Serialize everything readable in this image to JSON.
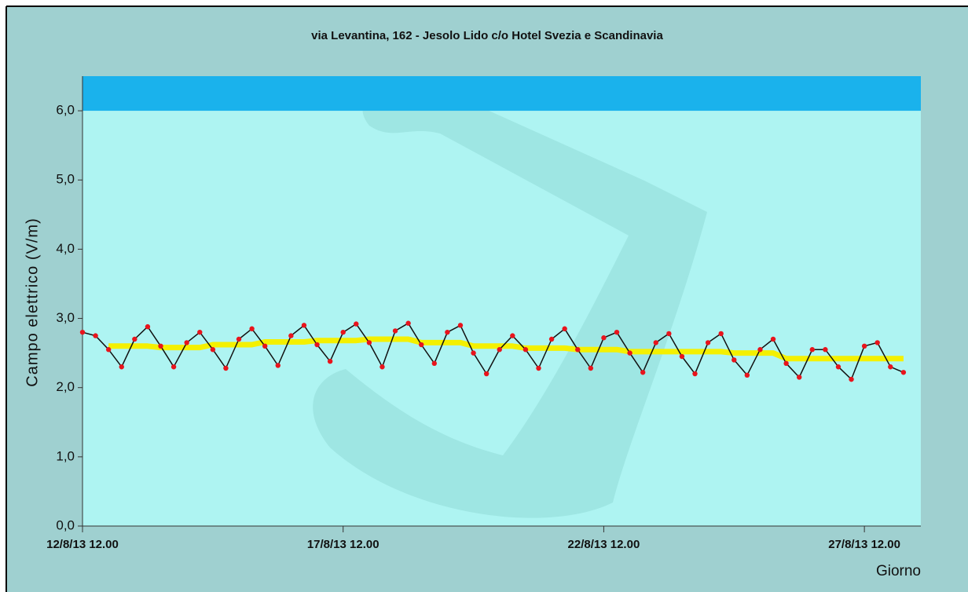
{
  "chart_data": {
    "type": "line",
    "title": "via Levantina, 162  - Jesolo Lido c/o Hotel Svezia e Scandinavia",
    "y_label": "Campo elettrico (V/m)",
    "x_label": "Giorno",
    "x": [
      "12/8/13 12.00",
      "12/8/13 18.00",
      "13/8/13 00.00",
      "13/8/13 06.00",
      "13/8/13 12.00",
      "13/8/13 18.00",
      "14/8/13 00.00",
      "14/8/13 06.00",
      "14/8/13 12.00",
      "14/8/13 18.00",
      "15/8/13 00.00",
      "15/8/13 06.00",
      "15/8/13 12.00",
      "15/8/13 18.00",
      "16/8/13 00.00",
      "16/8/13 06.00",
      "16/8/13 12.00",
      "16/8/13 18.00",
      "17/8/13 00.00",
      "17/8/13 06.00",
      "17/8/13 12.00",
      "17/8/13 18.00",
      "18/8/13 00.00",
      "18/8/13 06.00",
      "18/8/13 12.00",
      "18/8/13 18.00",
      "19/8/13 00.00",
      "19/8/13 06.00",
      "19/8/13 12.00",
      "19/8/13 18.00",
      "20/8/13 00.00",
      "20/8/13 06.00",
      "20/8/13 12.00",
      "20/8/13 18.00",
      "21/8/13 00.00",
      "21/8/13 06.00",
      "21/8/13 12.00",
      "21/8/13 18.00",
      "22/8/13 00.00",
      "22/8/13 06.00",
      "22/8/13 12.00",
      "22/8/13 18.00",
      "23/8/13 00.00",
      "23/8/13 06.00",
      "23/8/13 12.00",
      "23/8/13 18.00",
      "24/8/13 00.00",
      "24/8/13 06.00",
      "24/8/13 12.00",
      "24/8/13 18.00",
      "25/8/13 00.00",
      "25/8/13 06.00",
      "25/8/13 12.00",
      "25/8/13 18.00",
      "26/8/13 00.00",
      "26/8/13 06.00",
      "26/8/13 12.00",
      "26/8/13 18.00",
      "27/8/13 00.00",
      "27/8/13 06.00",
      "27/8/13 12.00",
      "27/8/13 18.00",
      "28/8/13 00.00",
      "28/8/13 06.00"
    ],
    "series": [
      {
        "color": "#e8141c",
        "line_color": "#111111",
        "values": [
          2.8,
          2.75,
          2.55,
          2.3,
          2.7,
          2.88,
          2.6,
          2.3,
          2.65,
          2.8,
          2.55,
          2.28,
          2.7,
          2.85,
          2.6,
          2.32,
          2.75,
          2.9,
          2.62,
          2.38,
          2.8,
          2.92,
          2.65,
          2.3,
          2.82,
          2.93,
          2.62,
          2.35,
          2.8,
          2.9,
          2.5,
          2.2,
          2.55,
          2.75,
          2.55,
          2.28,
          2.7,
          2.85,
          2.55,
          2.28,
          2.72,
          2.8,
          2.5,
          2.22,
          2.65,
          2.78,
          2.45,
          2.2,
          2.65,
          2.78,
          2.4,
          2.18,
          2.55,
          2.7,
          2.35,
          2.15,
          2.55,
          2.55,
          2.3,
          2.12,
          2.6,
          2.65,
          2.3,
          2.22
        ]
      },
      {
        "color": "#f4f000",
        "values": [
          null,
          null,
          2.6,
          2.6,
          2.6,
          2.6,
          2.58,
          2.58,
          2.58,
          2.58,
          2.62,
          2.62,
          2.62,
          2.62,
          2.66,
          2.66,
          2.66,
          2.66,
          2.68,
          2.68,
          2.68,
          2.68,
          2.7,
          2.7,
          2.7,
          2.7,
          2.65,
          2.65,
          2.65,
          2.65,
          2.6,
          2.6,
          2.6,
          2.6,
          2.57,
          2.57,
          2.57,
          2.57,
          2.55,
          2.55,
          2.55,
          2.55,
          2.52,
          2.52,
          2.52,
          2.52,
          2.52,
          2.52,
          2.52,
          2.52,
          2.5,
          2.5,
          2.5,
          2.5,
          2.42,
          2.42,
          2.42,
          2.42,
          2.42,
          2.42,
          2.42,
          2.42,
          2.42,
          2.42
        ]
      }
    ],
    "band": {
      "from": 6.0,
      "to": 6.5,
      "color": "#1ab2ec"
    },
    "xlim": [
      "12/8/13 12.00",
      "28/8/13 14.00"
    ],
    "xticks": [
      "12/8/13 12.00",
      "17/8/13 12.00",
      "22/8/13 12.00",
      "27/8/13 12.00"
    ],
    "ylim": [
      0,
      6.5
    ],
    "yticks": [
      {
        "value": 0,
        "label": "0,0"
      },
      {
        "value": 1,
        "label": "1,0"
      },
      {
        "value": 2,
        "label": "2,0"
      },
      {
        "value": 3,
        "label": "3,0"
      },
      {
        "value": 4,
        "label": "4,0"
      },
      {
        "value": 5,
        "label": "5,0"
      },
      {
        "value": 6,
        "label": "6,0"
      }
    ]
  }
}
